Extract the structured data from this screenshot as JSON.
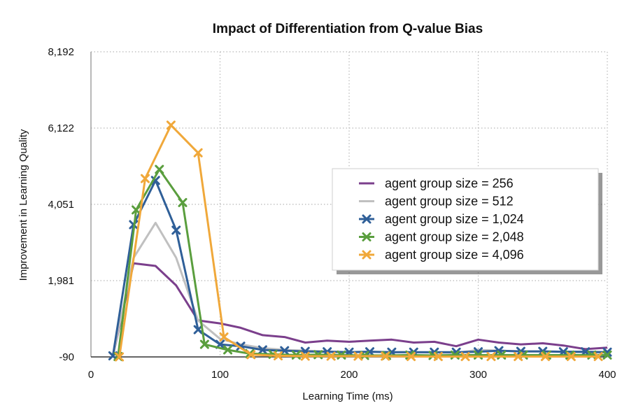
{
  "chart_data": {
    "type": "line",
    "title": "Impact of Differentiation from Q-value Bias",
    "xlabel": "Learning Time (ms)",
    "ylabel": "Improvement in Learning Quality",
    "xlim": [
      0,
      400
    ],
    "ylim": [
      -90,
      8192
    ],
    "x_ticks": [
      "0",
      "100",
      "200",
      "300",
      "400"
    ],
    "y_ticks": [
      "-90",
      "1,981",
      "4,051",
      "6,122",
      "8,192"
    ],
    "grid": true,
    "legend_position": "right",
    "series": [
      {
        "name": "agent group size = 256",
        "color": "#7b3f8c",
        "marker": "none",
        "x": [
          17,
          33,
          50,
          66,
          83,
          100,
          116,
          133,
          150,
          166,
          183,
          200,
          216,
          233,
          250,
          266,
          283,
          300,
          316,
          333,
          350,
          366,
          383,
          400
        ],
        "y": [
          -60,
          2450,
          2380,
          1850,
          900,
          820,
          700,
          500,
          450,
          300,
          350,
          320,
          350,
          380,
          300,
          320,
          200,
          380,
          300,
          250,
          280,
          220,
          120,
          160
        ]
      },
      {
        "name": "agent group size = 512",
        "color": "#c0c0c0",
        "marker": "none",
        "x": [
          17,
          33,
          50,
          66,
          83,
          100,
          116,
          133,
          150,
          166,
          183,
          200,
          216,
          233,
          250,
          266,
          283,
          300,
          316,
          333,
          350,
          366,
          383,
          400
        ],
        "y": [
          -60,
          2600,
          3550,
          2600,
          900,
          400,
          250,
          150,
          100,
          80,
          60,
          40,
          50,
          40,
          40,
          30,
          20,
          100,
          80,
          60,
          60,
          50,
          40,
          30
        ]
      },
      {
        "name": "agent group size = 1,024",
        "color": "#2f5f98",
        "marker": "x",
        "x": [
          17,
          33,
          50,
          66,
          83,
          100,
          116,
          133,
          150,
          166,
          183,
          200,
          216,
          233,
          250,
          266,
          283,
          300,
          316,
          333,
          350,
          366,
          383,
          400
        ],
        "y": [
          -60,
          3500,
          4700,
          3350,
          650,
          250,
          200,
          100,
          80,
          60,
          50,
          40,
          50,
          40,
          40,
          40,
          40,
          50,
          80,
          60,
          60,
          50,
          50,
          40
        ]
      },
      {
        "name": "agent group size = 2,048",
        "color": "#5a9e3e",
        "marker": "x",
        "x": [
          21,
          35,
          53,
          71,
          88,
          106,
          123,
          141,
          159,
          176,
          194,
          212,
          229,
          247,
          265,
          282,
          300,
          318,
          335,
          353,
          371,
          388,
          400
        ],
        "y": [
          -80,
          3900,
          5000,
          4100,
          250,
          100,
          0,
          -20,
          -40,
          -30,
          -40,
          -50,
          -50,
          -40,
          -50,
          -40,
          -40,
          -40,
          -40,
          -40,
          -40,
          -40,
          -40
        ]
      },
      {
        "name": "agent group size = 4,096",
        "color": "#f0a83a",
        "marker": "x",
        "x": [
          22,
          42,
          62,
          83,
          103,
          124,
          145,
          166,
          186,
          207,
          228,
          248,
          269,
          290,
          310,
          331,
          352,
          372,
          393
        ],
        "y": [
          -90,
          4750,
          6200,
          5450,
          450,
          -30,
          -60,
          -70,
          -70,
          -70,
          -70,
          -80,
          -80,
          -80,
          -80,
          -80,
          -80,
          -80,
          -80
        ]
      }
    ]
  }
}
